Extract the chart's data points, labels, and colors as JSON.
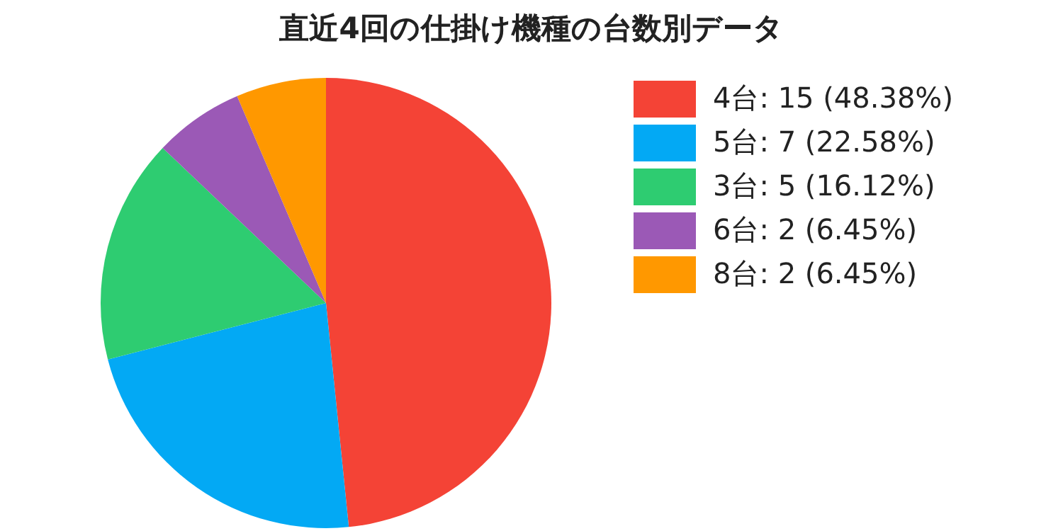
{
  "chart_data": {
    "type": "pie",
    "title": "直近4回の仕掛け機種の台数別データ",
    "categories": [
      "4台: 15 (48.38%)",
      "5台: 7 (22.58%)",
      "3台: 5 (16.12%)",
      "6台: 2 (6.45%)",
      "8台: 2 (6.45%)"
    ],
    "values": [
      15,
      7,
      5,
      2,
      2
    ],
    "colors": [
      "#f44336",
      "#03a9f4",
      "#2ecc71",
      "#9b59b6",
      "#ff9800"
    ],
    "legend": "right"
  }
}
